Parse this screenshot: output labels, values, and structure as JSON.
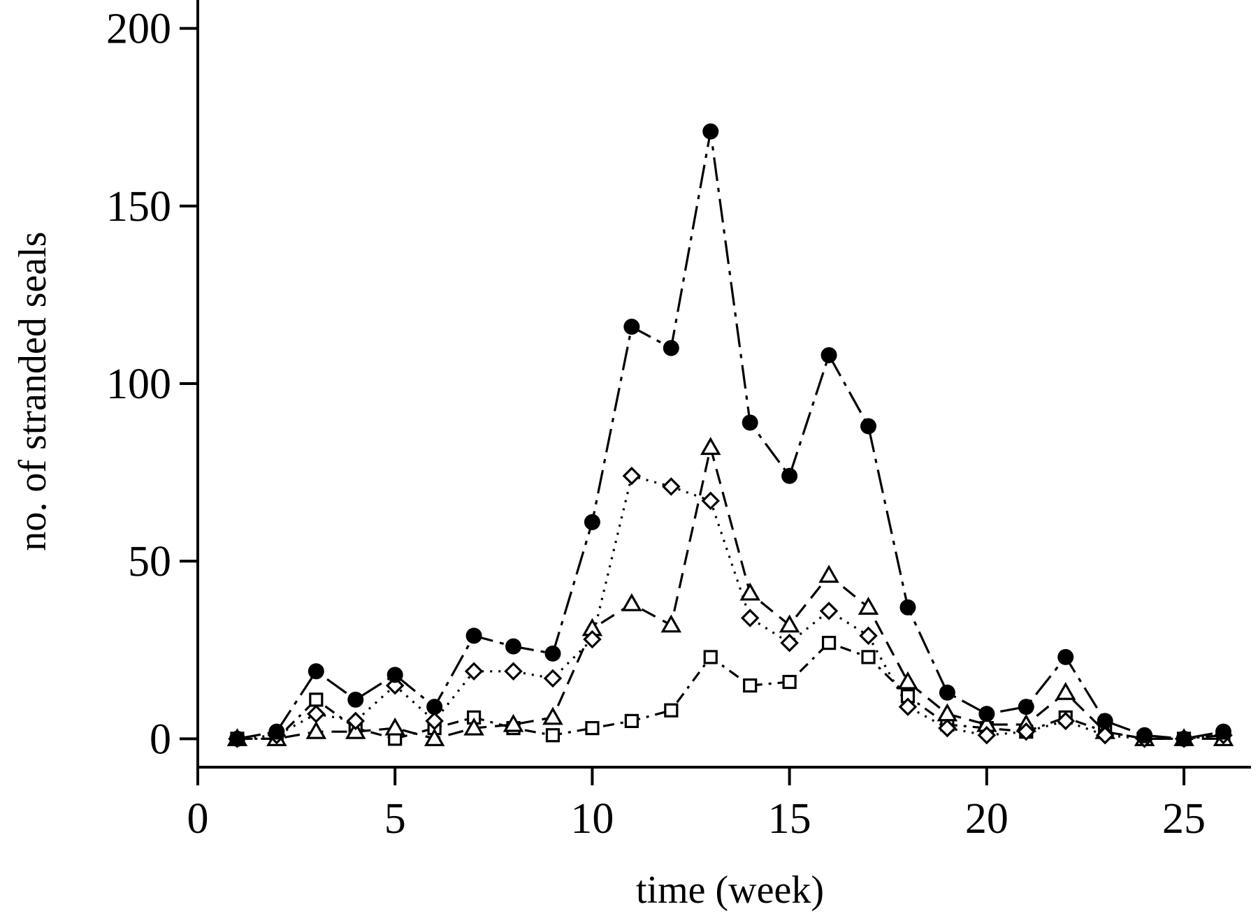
{
  "chart_data": {
    "type": "line",
    "title": "",
    "xlabel": "time (week)",
    "ylabel": "no. of stranded seals",
    "xlim": [
      0,
      26.7
    ],
    "ylim": [
      -8,
      208
    ],
    "xticks": [
      0,
      5,
      10,
      15,
      20,
      25
    ],
    "yticks": [
      0,
      50,
      100,
      150,
      200
    ],
    "legend": "none",
    "grid": false,
    "x": [
      1,
      2,
      3,
      4,
      5,
      6,
      7,
      8,
      9,
      10,
      11,
      12,
      13,
      14,
      15,
      16,
      17,
      18,
      19,
      20,
      21,
      22,
      23,
      24,
      25,
      26
    ],
    "series": [
      {
        "name": "filled circles",
        "marker": "circle-filled",
        "line": "dashdot-long",
        "values": [
          0,
          2,
          19,
          11,
          18,
          9,
          29,
          26,
          24,
          61,
          116,
          110,
          171,
          89,
          74,
          108,
          88,
          37,
          13,
          7,
          9,
          23,
          5,
          1,
          0,
          2
        ]
      },
      {
        "name": "open diamonds",
        "marker": "diamond-open",
        "line": "dotted",
        "values": [
          0,
          1,
          7,
          5,
          15,
          5,
          19,
          19,
          17,
          28,
          74,
          71,
          67,
          34,
          27,
          36,
          29,
          9,
          3,
          1,
          2,
          5,
          1,
          0,
          0,
          1
        ]
      },
      {
        "name": "open triangles",
        "marker": "triangle-open",
        "line": "dashed",
        "values": [
          0,
          0,
          2,
          2,
          3,
          0,
          3,
          4,
          6,
          31,
          38,
          32,
          82,
          41,
          32,
          46,
          37,
          16,
          7,
          4,
          4,
          13,
          2,
          0,
          0,
          0
        ]
      },
      {
        "name": "open squares",
        "marker": "square-open",
        "line": "dashdot-short",
        "values": [
          0,
          0,
          11,
          3,
          0,
          3,
          6,
          3,
          1,
          3,
          5,
          8,
          23,
          15,
          16,
          27,
          23,
          12,
          4,
          3,
          2,
          6,
          2,
          0,
          0,
          1
        ]
      }
    ]
  }
}
